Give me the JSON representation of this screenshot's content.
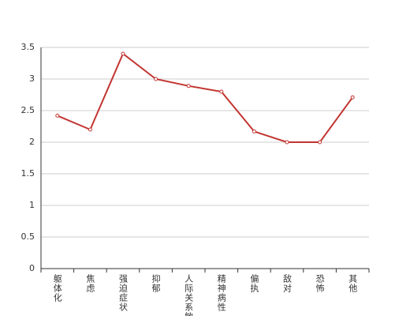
{
  "chart_data": {
    "type": "line",
    "categories": [
      "躯体化",
      "焦虑",
      "强迫症状",
      "抑郁",
      "人际关系敏感",
      "精神病性",
      "偏执",
      "敌对",
      "恐怖",
      "其他"
    ],
    "values": [
      2.42,
      2.2,
      3.4,
      3.0,
      2.89,
      2.8,
      2.17,
      2.0,
      2.0,
      2.71
    ],
    "color": "#c23531",
    "ylim": [
      0,
      3.5
    ],
    "yticks": [
      0,
      0.5,
      1,
      1.5,
      2,
      2.5,
      3,
      3.5
    ],
    "grid": true
  }
}
